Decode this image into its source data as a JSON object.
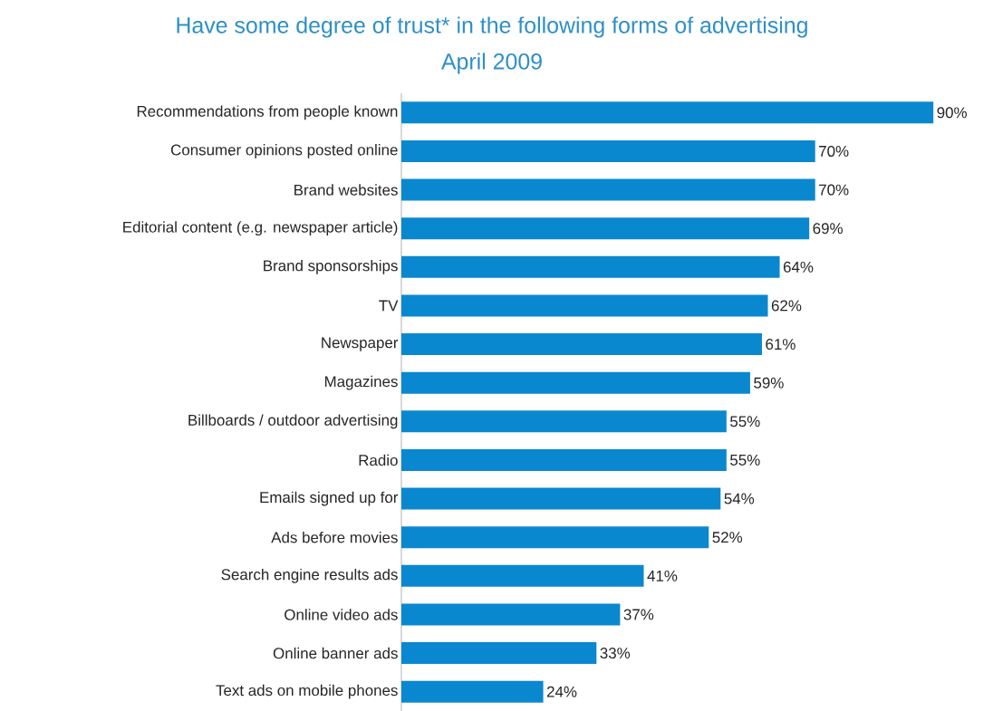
{
  "chart_data": {
    "type": "bar",
    "orientation": "horizontal",
    "title": "Have some degree of trust* in the following forms of advertising",
    "subtitle": "April 2009",
    "categories": [
      "Recommendations from people known",
      "Consumer opinions posted online",
      "Brand websites",
      "Editorial content (e.g. newspaper article)",
      "Brand sponsorships",
      "TV",
      "Newspaper",
      "Magazines",
      "Billboards / outdoor advertising",
      "Radio",
      "Emails signed up for",
      "Ads before movies",
      "Search engine results ads",
      "Online video ads",
      "Online banner ads",
      "Text ads on mobile phones"
    ],
    "values": [
      90,
      70,
      70,
      69,
      64,
      62,
      61,
      59,
      55,
      55,
      54,
      52,
      41,
      37,
      33,
      24
    ],
    "value_labels": [
      "90%",
      "70%",
      "70%",
      "69%",
      "64%",
      "62%",
      "61%",
      "59%",
      "55%",
      "55%",
      "54%",
      "52%",
      "41%",
      "37%",
      "33%",
      "24%"
    ],
    "color": "#0a88cf"
  }
}
